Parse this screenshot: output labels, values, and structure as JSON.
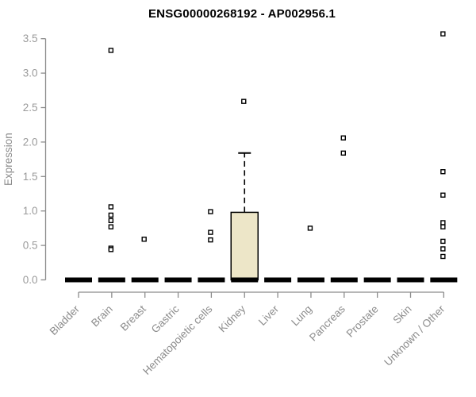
{
  "page": {
    "title": "ENSG00000268192 - AP002956.1"
  },
  "chart_data": {
    "type": "boxplot",
    "title": "ENSG00000268192 - AP002956.1",
    "xlabel": "",
    "ylabel": "Expression",
    "ylim": [
      0,
      3.65
    ],
    "yticks": [
      "0.0",
      "0.5",
      "1.0",
      "1.5",
      "2.0",
      "2.5",
      "3.0",
      "3.5"
    ],
    "ytick_values": [
      0.0,
      0.5,
      1.0,
      1.5,
      2.0,
      2.5,
      3.0,
      3.5
    ],
    "grid": false,
    "legend": false,
    "categories": [
      "Bladder",
      "Brain",
      "Breast",
      "Gastric",
      "Hematopoietic cells",
      "Kidney",
      "Liver",
      "Lung",
      "Pancreas",
      "Prostate",
      "Skin",
      "Unknown / Other"
    ],
    "boxes": [
      {
        "category": "Bladder",
        "q1": 0,
        "median": 0,
        "q3": 0,
        "whisker_low": 0,
        "whisker_high": 0,
        "outliers": []
      },
      {
        "category": "Brain",
        "q1": 0,
        "median": 0,
        "q3": 0,
        "whisker_low": 0,
        "whisker_high": 0,
        "outliers": [
          3.33,
          1.06,
          0.94,
          0.86,
          0.77,
          0.46,
          0.44
        ]
      },
      {
        "category": "Breast",
        "q1": 0,
        "median": 0,
        "q3": 0,
        "whisker_low": 0,
        "whisker_high": 0,
        "outliers": [
          0.59
        ]
      },
      {
        "category": "Gastric",
        "q1": 0,
        "median": 0,
        "q3": 0,
        "whisker_low": 0,
        "whisker_high": 0,
        "outliers": []
      },
      {
        "category": "Hematopoietic cells",
        "q1": 0,
        "median": 0,
        "q3": 0,
        "whisker_low": 0,
        "whisker_high": 0,
        "outliers": [
          0.99,
          0.69,
          0.58
        ]
      },
      {
        "category": "Kidney",
        "q1": 0,
        "median": 0,
        "q3": 0.98,
        "whisker_low": 0,
        "whisker_high": 1.84,
        "outliers": [
          2.59
        ]
      },
      {
        "category": "Liver",
        "q1": 0,
        "median": 0,
        "q3": 0,
        "whisker_low": 0,
        "whisker_high": 0,
        "outliers": []
      },
      {
        "category": "Lung",
        "q1": 0,
        "median": 0,
        "q3": 0,
        "whisker_low": 0,
        "whisker_high": 0,
        "outliers": [
          0.75
        ]
      },
      {
        "category": "Pancreas",
        "q1": 0,
        "median": 0,
        "q3": 0,
        "whisker_low": 0,
        "whisker_high": 0,
        "outliers": [
          2.06,
          1.84
        ]
      },
      {
        "category": "Prostate",
        "q1": 0,
        "median": 0,
        "q3": 0,
        "whisker_low": 0,
        "whisker_high": 0,
        "outliers": []
      },
      {
        "category": "Skin",
        "q1": 0,
        "median": 0,
        "q3": 0,
        "whisker_low": 0,
        "whisker_high": 0,
        "outliers": []
      },
      {
        "category": "Unknown / Other",
        "q1": 0,
        "median": 0,
        "q3": 0,
        "whisker_low": 0,
        "whisker_high": 0,
        "outliers": [
          3.57,
          1.57,
          1.23,
          0.83,
          0.77,
          0.56,
          0.45,
          0.34
        ]
      }
    ],
    "colors": {
      "box_fill": "#ede6c8",
      "box_stroke": "#000000",
      "median": "#000000",
      "whisker": "#000000",
      "outlier_stroke": "#000000",
      "outlier_fill": "#ffffff",
      "axis": "#8c8c8c",
      "tick_label": "#9a9a9a",
      "title": "#000000",
      "background": "#ffffff"
    }
  }
}
